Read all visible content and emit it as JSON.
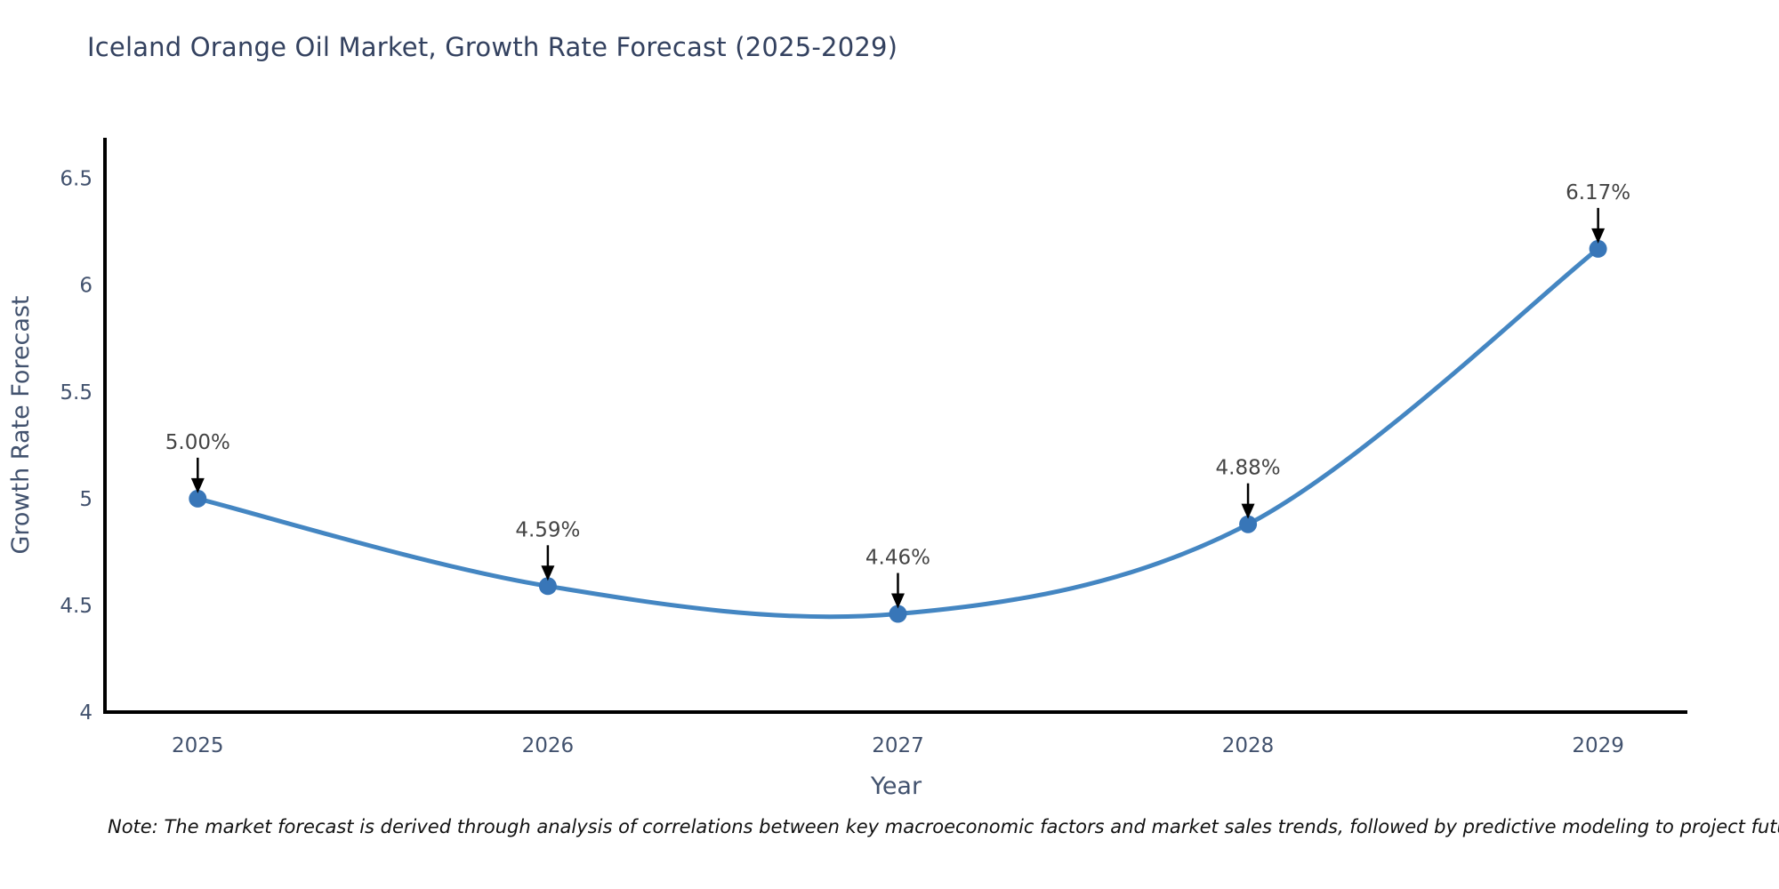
{
  "chart_data": {
    "type": "line",
    "title": "Iceland Orange Oil Market, Growth Rate Forecast (2025-2029)",
    "xlabel": "Year",
    "ylabel": "Growth Rate Forecast",
    "x": [
      2025,
      2026,
      2027,
      2028,
      2029
    ],
    "values": [
      5.0,
      4.59,
      4.46,
      4.88,
      6.17
    ],
    "point_labels": [
      "5.00%",
      "4.59%",
      "4.46%",
      "4.88%",
      "6.17%"
    ],
    "xtick_labels": [
      "2025",
      "2026",
      "2027",
      "2028",
      "2029"
    ],
    "yticks": [
      4,
      4.5,
      5,
      5.5,
      6,
      6.5
    ],
    "ytick_labels": [
      "4",
      "4.5",
      "5",
      "5.5",
      "6",
      "6.5"
    ],
    "xlim": [
      2024.735,
      2029.255
    ],
    "ylim": [
      4.0,
      6.69
    ],
    "line_shape": "spline",
    "grid": false,
    "legend_position": "none",
    "colors": {
      "line": "#4486c2",
      "marker": "#3876b8",
      "axis_line": "#000000",
      "tick_text": "#42526e",
      "axis_title_text": "#42526e",
      "annotation_text": "#444444",
      "annotation_arrow": "#000000",
      "title_text": "#33415f",
      "background": "#ffffff"
    }
  },
  "note": {
    "text": "Note: The market forecast is derived through analysis of correlations between key macroeconomic factors and market sales trends, followed by predictive modeling to project future sales"
  }
}
